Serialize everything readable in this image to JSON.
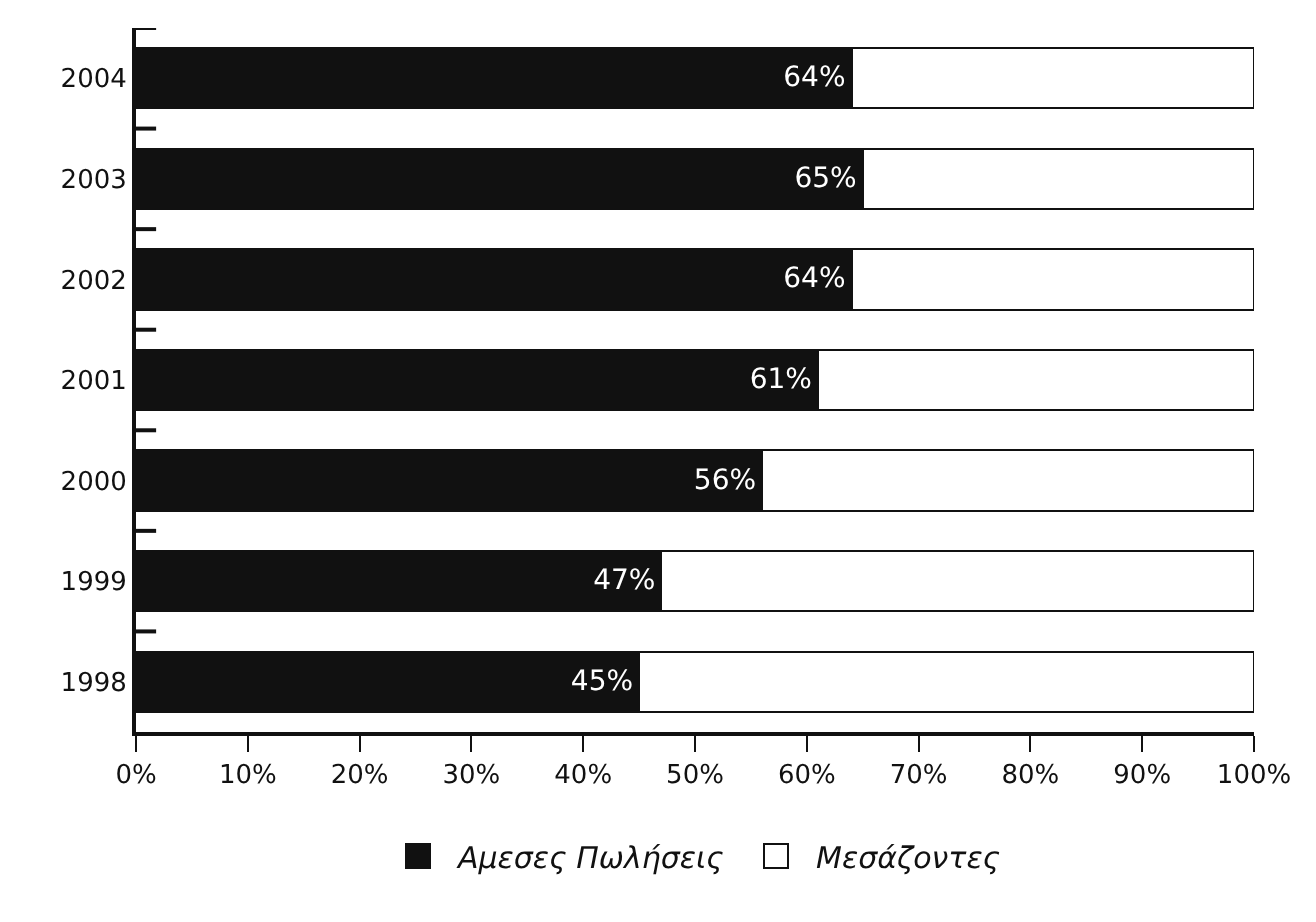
{
  "chart_data": {
    "type": "bar",
    "orientation": "horizontal",
    "stacked": true,
    "categories": [
      "2004",
      "2003",
      "2002",
      "2001",
      "2000",
      "1999",
      "1998"
    ],
    "series": [
      {
        "name": "Αμεσες Πωλήσεις",
        "color": "#111111",
        "values": [
          64,
          65,
          64,
          61,
          56,
          47,
          45
        ],
        "value_labels": [
          "64%",
          "65%",
          "64%",
          "61%",
          "56%",
          "47%",
          "45%"
        ]
      },
      {
        "name": "Μεσάζοντες",
        "color": "#ffffff",
        "values": [
          36,
          35,
          36,
          39,
          44,
          53,
          55
        ]
      }
    ],
    "xlim": [
      0,
      100
    ],
    "xticks": [
      {
        "value": 0,
        "label": "0%"
      },
      {
        "value": 10,
        "label": "10%"
      },
      {
        "value": 20,
        "label": "20%"
      },
      {
        "value": 30,
        "label": "30%"
      },
      {
        "value": 40,
        "label": "40%"
      },
      {
        "value": 50,
        "label": "50%"
      },
      {
        "value": 60,
        "label": "60%"
      },
      {
        "value": 70,
        "label": "70%"
      },
      {
        "value": 80,
        "label": "80%"
      },
      {
        "value": 90,
        "label": "90%"
      },
      {
        "value": 100,
        "label": "100%"
      }
    ],
    "grid": false,
    "legend": "bottom"
  }
}
